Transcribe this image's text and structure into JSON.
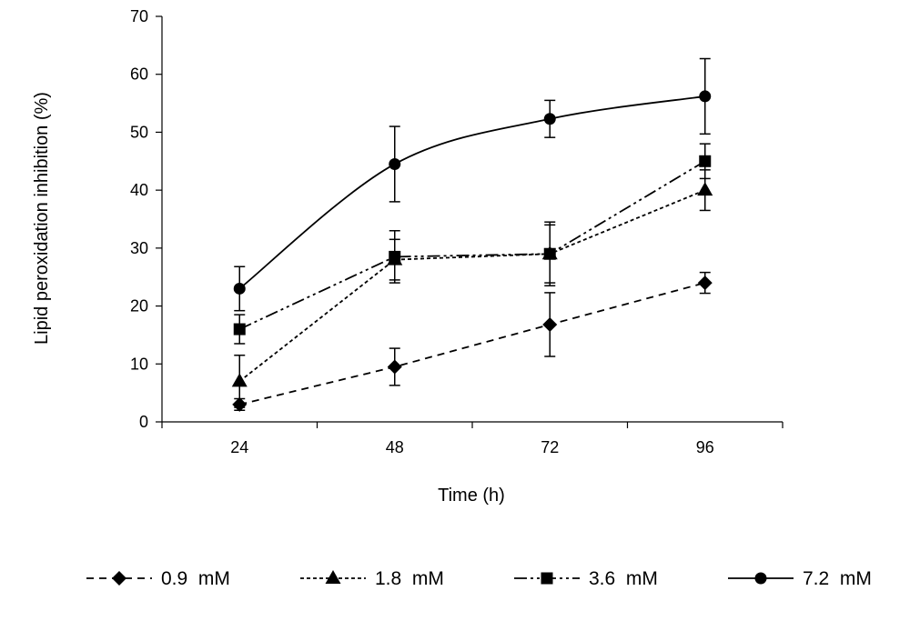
{
  "chart_data": {
    "type": "line",
    "title": "",
    "xlabel": "Time (h)",
    "ylabel": "Lipid peroxidation inhibition (%)",
    "categories": [
      "24",
      "48",
      "72",
      "96"
    ],
    "ylim": [
      0,
      70
    ],
    "yticks": [
      0,
      10,
      20,
      30,
      40,
      50,
      60,
      70
    ],
    "grid": false,
    "legend_position": "bottom",
    "series": [
      {
        "name": "0.9  mM",
        "values": [
          3,
          9.5,
          16.8,
          24
        ],
        "errors": [
          1,
          3.2,
          5.5,
          1.8
        ],
        "marker": "diamond",
        "dash": "8,6",
        "line_color": "#000000"
      },
      {
        "name": "1.8  mM",
        "values": [
          7,
          28,
          29,
          40
        ],
        "errors": [
          4.5,
          3.5,
          5,
          3.5
        ],
        "marker": "triangle",
        "dash": "4,3",
        "line_color": "#000000"
      },
      {
        "name": "3.6  mM",
        "values": [
          16,
          28.5,
          29,
          45
        ],
        "errors": [
          2.5,
          4.5,
          5.5,
          3
        ],
        "marker": "square",
        "dash": "14,4,3,4,3,4",
        "line_color": "#000000"
      },
      {
        "name": "7.2  mM",
        "values": [
          23,
          44.5,
          52.3,
          56.2
        ],
        "errors": [
          3.8,
          6.5,
          3.2,
          6.5
        ],
        "marker": "circle",
        "dash": "",
        "line_color": "#000000"
      }
    ]
  }
}
